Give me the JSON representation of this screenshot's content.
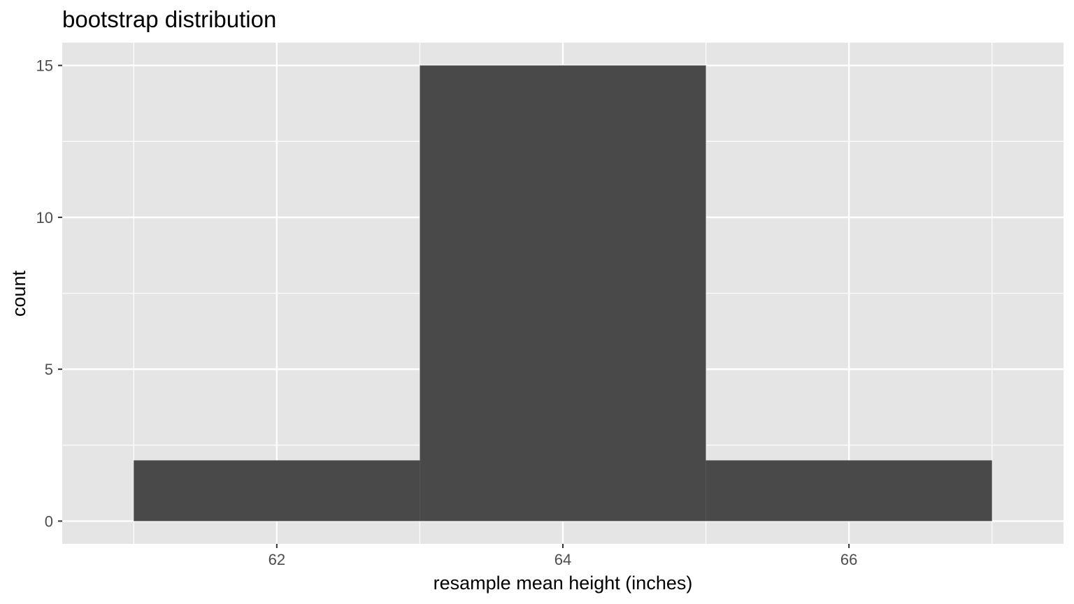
{
  "chart_data": {
    "type": "bar",
    "title": "bootstrap distribution",
    "xlabel": "resample mean height (inches)",
    "ylabel": "count",
    "bins": [
      {
        "x_start": 61,
        "x_end": 63,
        "count": 2
      },
      {
        "x_start": 63,
        "x_end": 65,
        "count": 15
      },
      {
        "x_start": 65,
        "x_end": 67,
        "count": 2
      }
    ],
    "xlim": [
      60.5,
      67.5
    ],
    "ylim": [
      -0.75,
      15.75
    ],
    "x_ticks": [
      62,
      64,
      66
    ],
    "x_tick_labels": [
      "62",
      "64",
      "66"
    ],
    "y_ticks": [
      0,
      5,
      10,
      15
    ],
    "y_tick_labels": [
      "0",
      "5",
      "10",
      "15"
    ],
    "grid": true,
    "colors": {
      "panel_background": "#e5e5e5",
      "grid": "#ffffff",
      "bar_fill": "#494949",
      "tick_text": "#4d4d4d",
      "tick_mark": "#333333"
    }
  }
}
